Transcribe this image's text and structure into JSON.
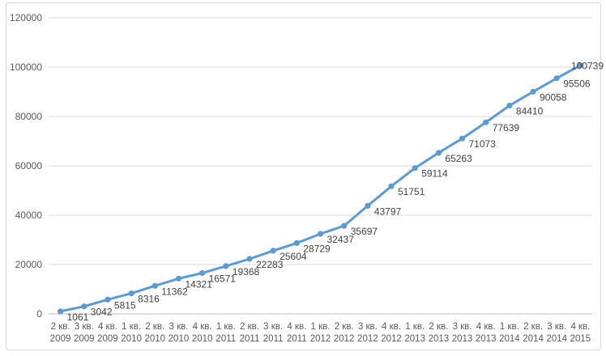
{
  "chart_data": {
    "type": "line",
    "title": "",
    "legend_position": "none",
    "grid": true,
    "categories": [
      "2 кв. 2009",
      "3 кв. 2009",
      "4 кв. 2009",
      "1 кв. 2010",
      "2 кв. 2010",
      "3 кв. 2010",
      "4 кв. 2010",
      "1 кв. 2011",
      "2 кв. 2011",
      "3 кв. 2011",
      "4 кв. 2011",
      "1 кв. 2012",
      "2 кв. 2012",
      "3 кв. 2012",
      "4 кв. 2012",
      "1 кв. 2013",
      "2 кв. 2013",
      "3 кв. 2013",
      "4 кв. 2013",
      "1 кв. 2014",
      "2 кв. 2014",
      "3 кв. 2014",
      "4 кв. 2015"
    ],
    "values": [
      1061,
      3042,
      5815,
      8316,
      11362,
      14321,
      16571,
      19368,
      22283,
      25604,
      28729,
      32437,
      35697,
      43797,
      51751,
      59114,
      65263,
      71073,
      77639,
      84410,
      90058,
      95506,
      100739
    ],
    "data_labels": [
      "1061",
      "3042",
      "5815",
      "8316",
      "11362",
      "14321",
      "16571",
      "19368",
      "22283",
      "25604",
      "28729",
      "32437",
      "35697",
      "43797",
      "51751",
      "59114",
      "65263",
      "71073",
      "77639",
      "84410",
      "90058",
      "95506",
      "100739"
    ],
    "xlabel": "",
    "ylabel": "",
    "ylim": [
      0,
      120000
    ],
    "ytick_step": 20000,
    "yticks": [
      "0",
      "20000",
      "40000",
      "60000",
      "80000",
      "100000",
      "120000"
    ],
    "colors": {
      "series": "#5B9BD5",
      "marker": "#5B9BD5",
      "gridline": "#D9D9D9",
      "axis_line": "#BFBFBF",
      "axis_text": "#595959",
      "data_label_text": "#404040",
      "frame_border": "#D9D9D9",
      "background": "#FFFFFF"
    }
  }
}
